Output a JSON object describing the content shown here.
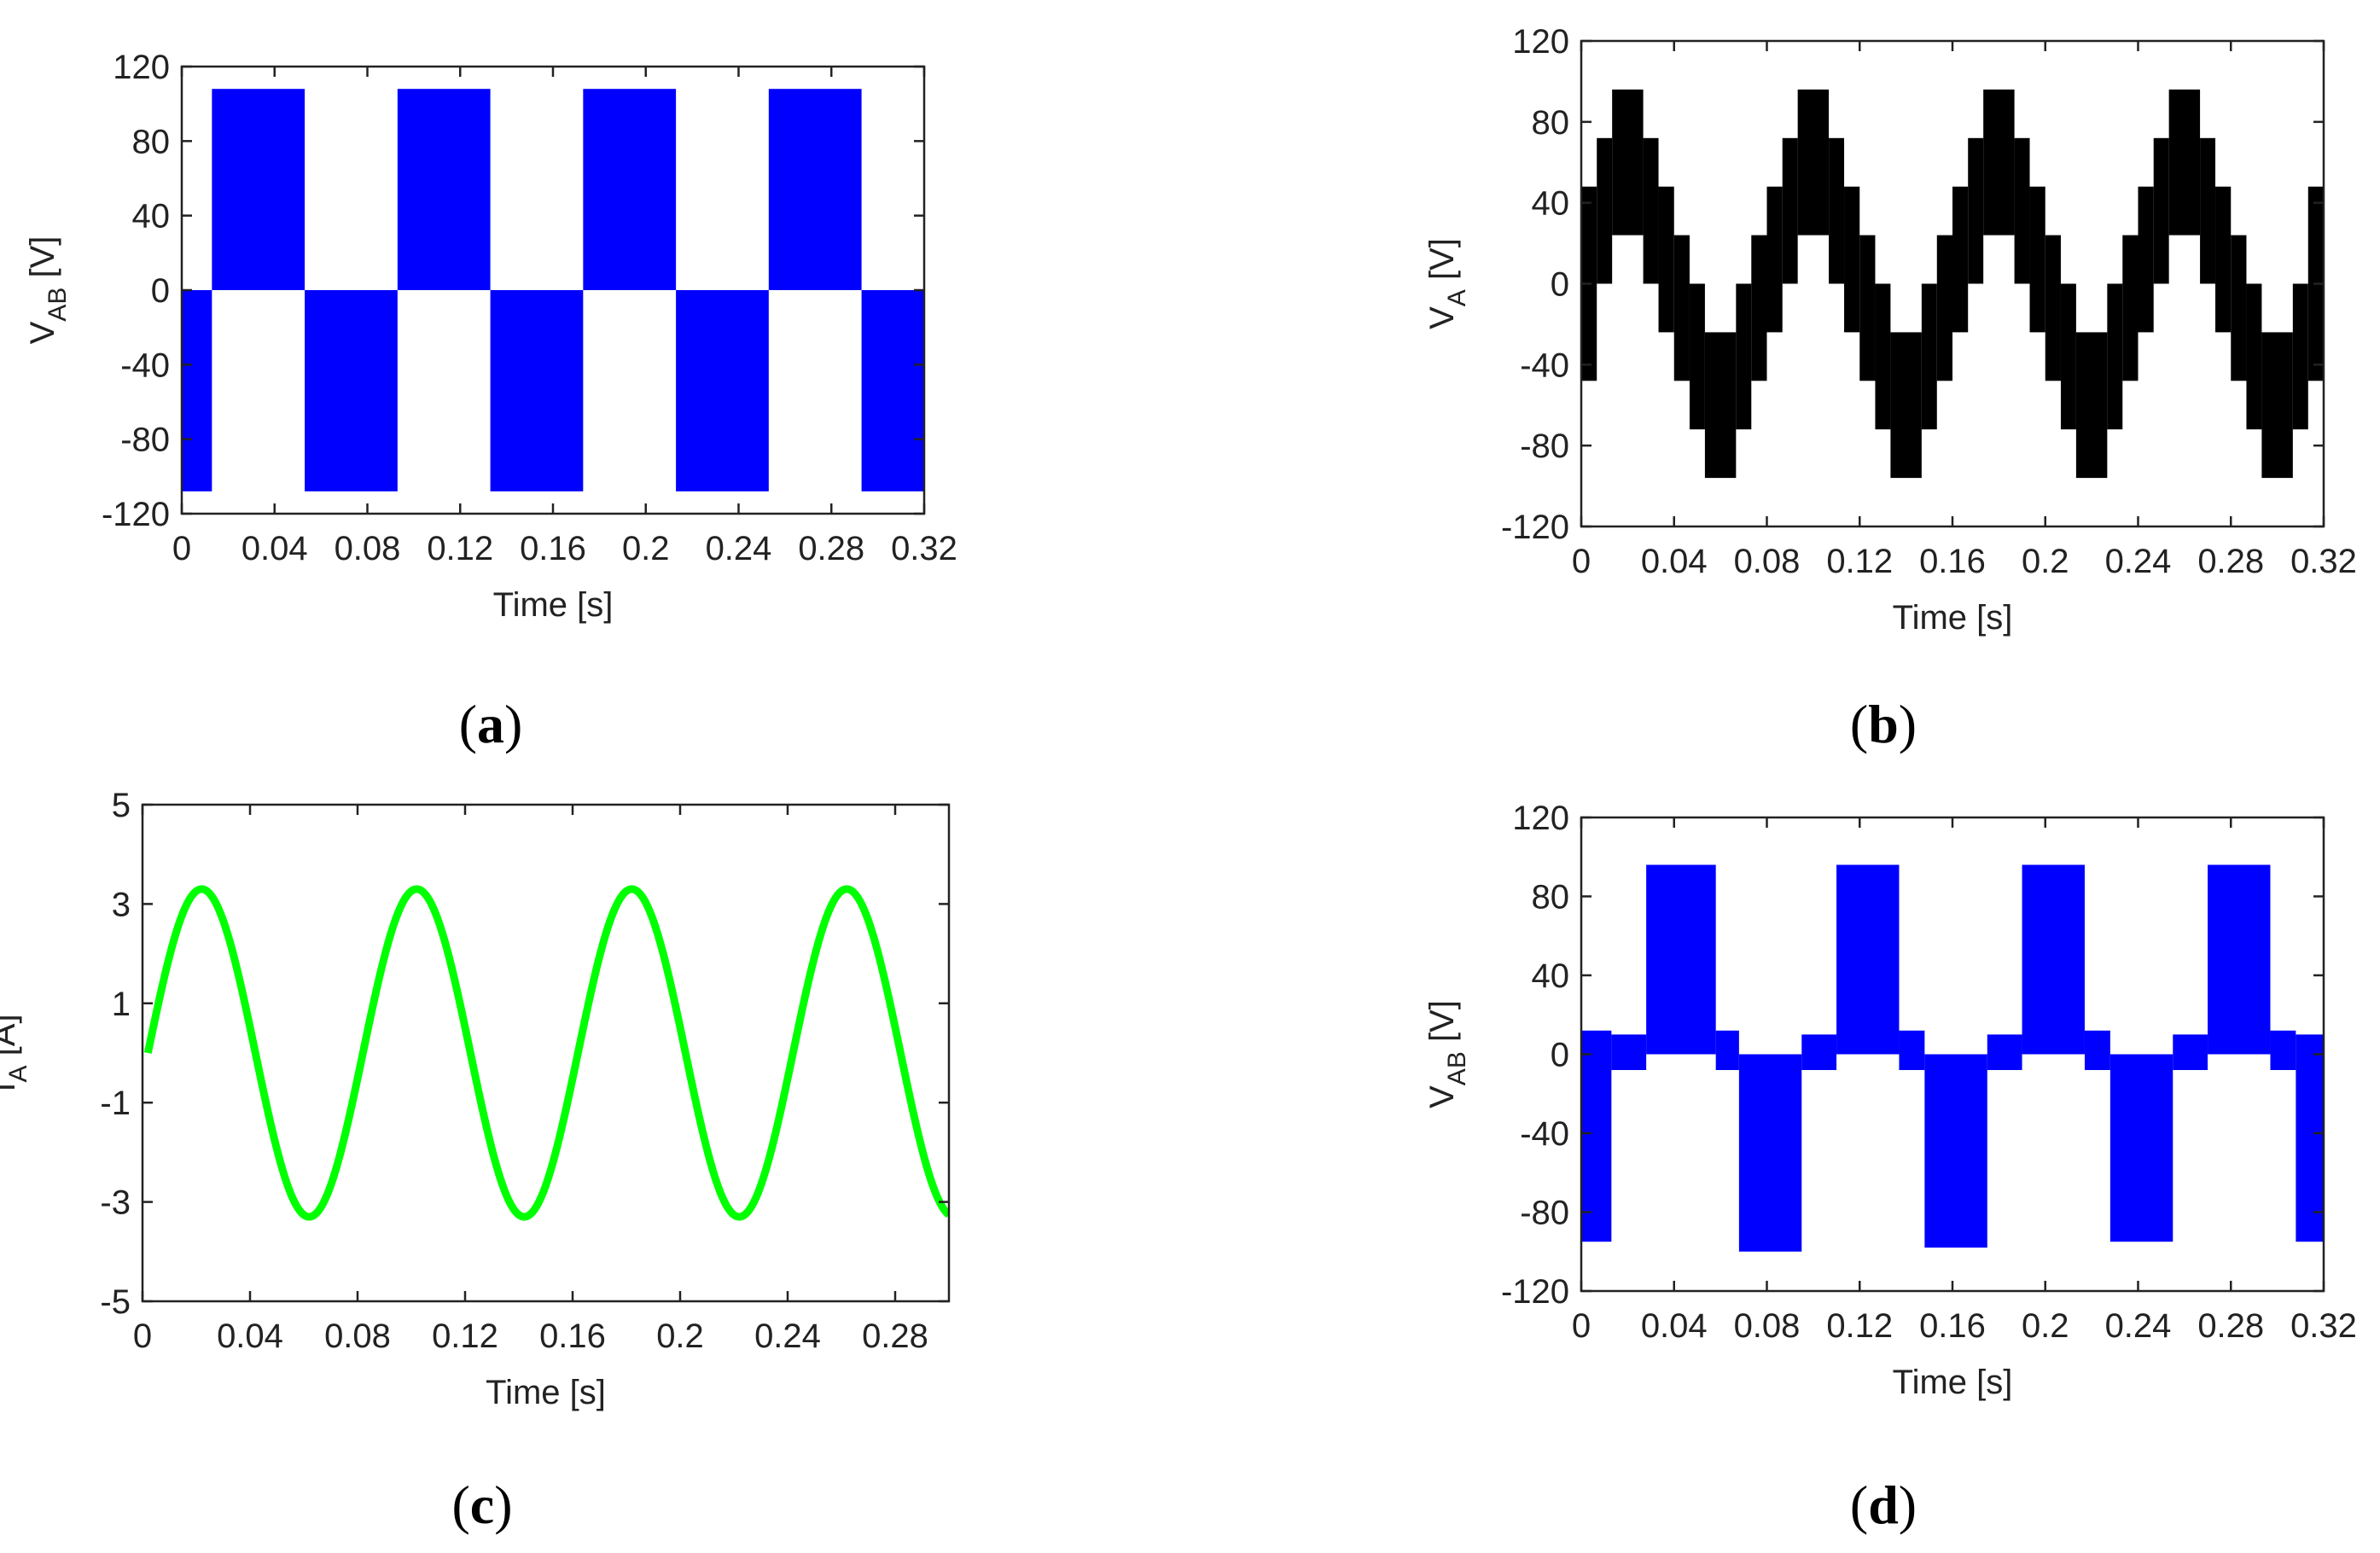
{
  "chart_data": [
    {
      "id": "a",
      "type": "line",
      "panel_label": "(a)",
      "panel_letter": "a",
      "xlabel": "Time [s]",
      "ylabel": "V",
      "ylabel_sub": "AB",
      "ylabel_unit": " [V]",
      "xlim": [
        0,
        0.32
      ],
      "ylim": [
        -120,
        120
      ],
      "xticks": [
        0,
        0.04,
        0.08,
        0.12,
        0.16,
        0.2,
        0.24,
        0.28,
        0.32
      ],
      "xtick_labels": [
        "0",
        "0.04",
        "0.08",
        "0.12",
        "0.16",
        "0.2",
        "0.24",
        "0.28",
        "0.32"
      ],
      "yticks": [
        120,
        80,
        40,
        0,
        -40,
        -80,
        -120
      ],
      "ytick_labels": [
        "120",
        "80",
        "40",
        "0",
        "-40",
        "-80",
        "-120"
      ],
      "color": "#0000ff",
      "series": [
        {
          "kind": "pwm-bands",
          "bands": [
            {
              "x0": 0.0,
              "x1": 0.013,
              "ymin": -108,
              "ymax": 0
            },
            {
              "x0": 0.013,
              "x1": 0.053,
              "ymin": 0,
              "ymax": 108
            },
            {
              "x0": 0.053,
              "x1": 0.093,
              "ymin": -108,
              "ymax": 0
            },
            {
              "x0": 0.093,
              "x1": 0.133,
              "ymin": 0,
              "ymax": 108
            },
            {
              "x0": 0.133,
              "x1": 0.173,
              "ymin": -108,
              "ymax": 0
            },
            {
              "x0": 0.173,
              "x1": 0.213,
              "ymin": 0,
              "ymax": 108
            },
            {
              "x0": 0.213,
              "x1": 0.253,
              "ymin": -108,
              "ymax": 0
            },
            {
              "x0": 0.253,
              "x1": 0.293,
              "ymin": 0,
              "ymax": 108
            },
            {
              "x0": 0.293,
              "x1": 0.32,
              "ymin": -108,
              "ymax": 0
            }
          ]
        }
      ]
    },
    {
      "id": "b",
      "type": "line",
      "panel_label": "(b)",
      "panel_letter": "b",
      "xlabel": "Time [s]",
      "ylabel": "V",
      "ylabel_sub": "A",
      "ylabel_unit": " [V]",
      "xlim": [
        0,
        0.32
      ],
      "ylim": [
        -120,
        120
      ],
      "xticks": [
        0,
        0.04,
        0.08,
        0.12,
        0.16,
        0.2,
        0.24,
        0.28,
        0.32
      ],
      "xtick_labels": [
        "0",
        "0.04",
        "0.08",
        "0.12",
        "0.16",
        "0.2",
        "0.24",
        "0.28",
        "0.32"
      ],
      "yticks": [
        120,
        80,
        40,
        0,
        -40,
        -80,
        -120
      ],
      "ytick_labels": [
        "120",
        "80",
        "40",
        "0",
        "-40",
        "-80",
        "-120"
      ],
      "color": "#000000",
      "series": [
        {
          "kind": "pwm-bands",
          "bands": [
            {
              "x0": 0.0,
              "x1": 0.0067,
              "ymin": -48,
              "ymax": 48
            },
            {
              "x0": 0.0067,
              "x1": 0.0133,
              "ymin": 0,
              "ymax": 72
            },
            {
              "x0": 0.0133,
              "x1": 0.0267,
              "ymin": 24,
              "ymax": 96
            },
            {
              "x0": 0.0267,
              "x1": 0.0333,
              "ymin": 0,
              "ymax": 72
            },
            {
              "x0": 0.0333,
              "x1": 0.04,
              "ymin": -24,
              "ymax": 48
            },
            {
              "x0": 0.04,
              "x1": 0.0467,
              "ymin": -48,
              "ymax": 24
            },
            {
              "x0": 0.0467,
              "x1": 0.0533,
              "ymin": -72,
              "ymax": 0
            },
            {
              "x0": 0.0533,
              "x1": 0.0667,
              "ymin": -96,
              "ymax": -24
            },
            {
              "x0": 0.0667,
              "x1": 0.0733,
              "ymin": -72,
              "ymax": 0
            },
            {
              "x0": 0.0733,
              "x1": 0.08,
              "ymin": -48,
              "ymax": 24
            },
            {
              "x0": 0.08,
              "x1": 0.0867,
              "ymin": -24,
              "ymax": 48
            },
            {
              "x0": 0.0867,
              "x1": 0.0933,
              "ymin": 0,
              "ymax": 72
            },
            {
              "x0": 0.0933,
              "x1": 0.1067,
              "ymin": 24,
              "ymax": 96
            },
            {
              "x0": 0.1067,
              "x1": 0.1133,
              "ymin": 0,
              "ymax": 72
            },
            {
              "x0": 0.1133,
              "x1": 0.12,
              "ymin": -24,
              "ymax": 48
            },
            {
              "x0": 0.12,
              "x1": 0.1267,
              "ymin": -48,
              "ymax": 24
            },
            {
              "x0": 0.1267,
              "x1": 0.1333,
              "ymin": -72,
              "ymax": 0
            },
            {
              "x0": 0.1333,
              "x1": 0.1467,
              "ymin": -96,
              "ymax": -24
            },
            {
              "x0": 0.1467,
              "x1": 0.1533,
              "ymin": -72,
              "ymax": 0
            },
            {
              "x0": 0.1533,
              "x1": 0.16,
              "ymin": -48,
              "ymax": 24
            },
            {
              "x0": 0.16,
              "x1": 0.1667,
              "ymin": -24,
              "ymax": 48
            },
            {
              "x0": 0.1667,
              "x1": 0.1733,
              "ymin": 0,
              "ymax": 72
            },
            {
              "x0": 0.1733,
              "x1": 0.1867,
              "ymin": 24,
              "ymax": 96
            },
            {
              "x0": 0.1867,
              "x1": 0.1933,
              "ymin": 0,
              "ymax": 72
            },
            {
              "x0": 0.1933,
              "x1": 0.2,
              "ymin": -24,
              "ymax": 48
            },
            {
              "x0": 0.2,
              "x1": 0.2067,
              "ymin": -48,
              "ymax": 24
            },
            {
              "x0": 0.2067,
              "x1": 0.2133,
              "ymin": -72,
              "ymax": 0
            },
            {
              "x0": 0.2133,
              "x1": 0.2267,
              "ymin": -96,
              "ymax": -24
            },
            {
              "x0": 0.2267,
              "x1": 0.2333,
              "ymin": -72,
              "ymax": 0
            },
            {
              "x0": 0.2333,
              "x1": 0.24,
              "ymin": -48,
              "ymax": 24
            },
            {
              "x0": 0.24,
              "x1": 0.2467,
              "ymin": -24,
              "ymax": 48
            },
            {
              "x0": 0.2467,
              "x1": 0.2533,
              "ymin": 0,
              "ymax": 72
            },
            {
              "x0": 0.2533,
              "x1": 0.2667,
              "ymin": 24,
              "ymax": 96
            },
            {
              "x0": 0.2667,
              "x1": 0.2733,
              "ymin": 0,
              "ymax": 72
            },
            {
              "x0": 0.2733,
              "x1": 0.28,
              "ymin": -24,
              "ymax": 48
            },
            {
              "x0": 0.28,
              "x1": 0.2867,
              "ymin": -48,
              "ymax": 24
            },
            {
              "x0": 0.2867,
              "x1": 0.2933,
              "ymin": -72,
              "ymax": 0
            },
            {
              "x0": 0.2933,
              "x1": 0.3067,
              "ymin": -96,
              "ymax": -24
            },
            {
              "x0": 0.3067,
              "x1": 0.3133,
              "ymin": -72,
              "ymax": 0
            },
            {
              "x0": 0.3133,
              "x1": 0.32,
              "ymin": -48,
              "ymax": 48
            }
          ]
        }
      ]
    },
    {
      "id": "c",
      "type": "line",
      "panel_label": "(c)",
      "panel_letter": "c",
      "xlabel": "Time [s]",
      "ylabel": "I",
      "ylabel_sub": "A",
      "ylabel_unit": " [A]",
      "xlim": [
        0,
        0.3
      ],
      "ylim": [
        -5,
        5
      ],
      "xticks": [
        0,
        0.04,
        0.08,
        0.12,
        0.16,
        0.2,
        0.24,
        0.28
      ],
      "xtick_labels": [
        "0",
        "0.04",
        "0.08",
        "0.12",
        "0.16",
        "0.2",
        "0.24",
        "0.28"
      ],
      "yticks": [
        5,
        3,
        1,
        -1,
        -3,
        -5
      ],
      "ytick_labels": [
        "5",
        "3",
        "1",
        "-1",
        "-3",
        "-5"
      ],
      "color": "#00ff00",
      "series": [
        {
          "kind": "sine",
          "amplitude": 3.3,
          "frequency": 12.5,
          "x_start": 0.002,
          "x_end": 0.3
        }
      ]
    },
    {
      "id": "d",
      "type": "line",
      "panel_label": "(d)",
      "panel_letter": "d",
      "xlabel": "Time [s]",
      "ylabel": "V",
      "ylabel_sub": "AB",
      "ylabel_unit": " [V]",
      "xlim": [
        0,
        0.32
      ],
      "ylim": [
        -120,
        120
      ],
      "xticks": [
        0,
        0.04,
        0.08,
        0.12,
        0.16,
        0.2,
        0.24,
        0.28,
        0.32
      ],
      "xtick_labels": [
        "0",
        "0.04",
        "0.08",
        "0.12",
        "0.16",
        "0.2",
        "0.24",
        "0.28",
        "0.32"
      ],
      "yticks": [
        120,
        80,
        40,
        0,
        -40,
        -80,
        -120
      ],
      "ytick_labels": [
        "120",
        "80",
        "40",
        "0",
        "-40",
        "-80",
        "-120"
      ],
      "color": "#0000ff",
      "series": [
        {
          "kind": "pwm-bands",
          "bands": [
            {
              "x0": 0.0,
              "x1": 0.013,
              "ymin": -95,
              "ymax": 12
            },
            {
              "x0": 0.013,
              "x1": 0.028,
              "ymin": -8,
              "ymax": 10
            },
            {
              "x0": 0.028,
              "x1": 0.058,
              "ymin": 0,
              "ymax": 96
            },
            {
              "x0": 0.058,
              "x1": 0.068,
              "ymin": -8,
              "ymax": 12
            },
            {
              "x0": 0.068,
              "x1": 0.095,
              "ymin": -100,
              "ymax": 0
            },
            {
              "x0": 0.095,
              "x1": 0.11,
              "ymin": -8,
              "ymax": 10
            },
            {
              "x0": 0.11,
              "x1": 0.137,
              "ymin": 0,
              "ymax": 96
            },
            {
              "x0": 0.137,
              "x1": 0.148,
              "ymin": -8,
              "ymax": 12
            },
            {
              "x0": 0.148,
              "x1": 0.175,
              "ymin": -98,
              "ymax": 0
            },
            {
              "x0": 0.175,
              "x1": 0.19,
              "ymin": -8,
              "ymax": 10
            },
            {
              "x0": 0.19,
              "x1": 0.217,
              "ymin": 0,
              "ymax": 96
            },
            {
              "x0": 0.217,
              "x1": 0.228,
              "ymin": -8,
              "ymax": 12
            },
            {
              "x0": 0.228,
              "x1": 0.255,
              "ymin": -95,
              "ymax": 0
            },
            {
              "x0": 0.255,
              "x1": 0.27,
              "ymin": -8,
              "ymax": 10
            },
            {
              "x0": 0.27,
              "x1": 0.297,
              "ymin": 0,
              "ymax": 96
            },
            {
              "x0": 0.297,
              "x1": 0.308,
              "ymin": -8,
              "ymax": 12
            },
            {
              "x0": 0.308,
              "x1": 0.32,
              "ymin": -95,
              "ymax": 10
            }
          ]
        }
      ]
    }
  ]
}
